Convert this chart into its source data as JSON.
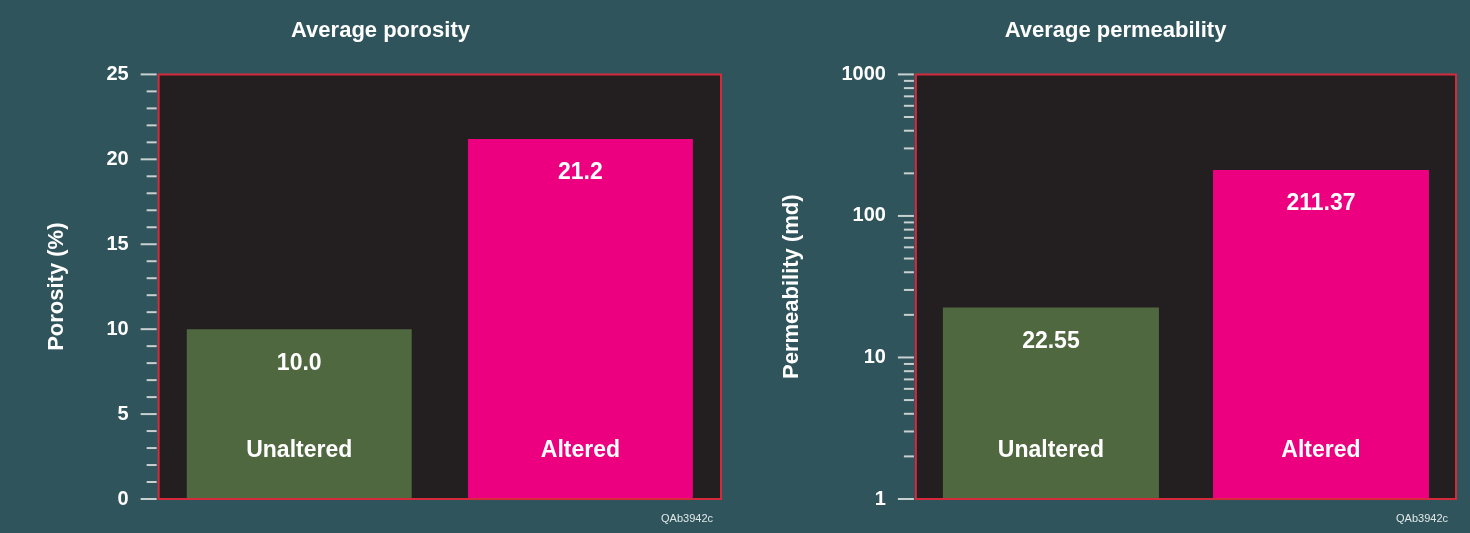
{
  "chart_data": [
    {
      "type": "bar",
      "title": "Average porosity",
      "ylabel": "Porosity (%)",
      "categories": [
        "Unaltered",
        "Altered"
      ],
      "values": [
        10,
        21.2
      ],
      "value_labels": [
        "10.0",
        "21.2"
      ],
      "colors": [
        "#506840",
        "#ec0080"
      ],
      "ylim": [
        0,
        25
      ],
      "yticks": [
        0,
        {
          "value": 1,
          "label": null
        },
        {
          "value": 2,
          "label": null
        },
        {
          "value": 3,
          "label": null
        },
        {
          "value": 4,
          "label": null
        },
        5,
        {
          "value": 6,
          "label": null
        },
        {
          "value": 7,
          "label": null
        },
        {
          "value": 8,
          "label": null
        },
        {
          "value": 9,
          "label": null
        },
        10,
        {
          "value": 11,
          "label": null
        },
        {
          "value": 12,
          "label": null
        },
        {
          "value": 13,
          "label": null
        },
        {
          "value": 14,
          "label": null
        },
        15,
        {
          "value": 16,
          "label": null
        },
        {
          "value": 17,
          "label": null
        },
        {
          "value": 18,
          "label": null
        },
        {
          "value": 19,
          "label": null
        },
        20,
        {
          "value": 21,
          "label": null
        },
        {
          "value": 22,
          "label": null
        },
        {
          "value": 23,
          "label": null
        },
        {
          "value": 24,
          "label": null
        },
        25
      ],
      "annotations": [
        "QAb3942c"
      ]
    },
    {
      "type": "bar",
      "title": "Average permeability",
      "ylabel": "Permeability (md)",
      "categories": [
        "Unaltered",
        "Altered"
      ],
      "values": [
        22.55,
        211.37
      ],
      "data_labels": true,
      "colors": [
        "#506840",
        "#ec0080"
      ],
      "log": true,
      "ylim": [
        1,
        1000
      ],
      "yticks": [
        1,
        {
          "value": 2,
          "label": null
        },
        {
          "value": 3,
          "label": null
        },
        {
          "value": 4,
          "label": null
        },
        {
          "value": 5,
          "label": null
        },
        {
          "value": 6,
          "label": null
        },
        {
          "value": 7,
          "label": null
        },
        {
          "value": 8,
          "label": null
        },
        {
          "value": 9,
          "label": null
        },
        10,
        {
          "value": 20,
          "label": null
        },
        {
          "value": 30,
          "label": null
        },
        {
          "value": 40,
          "label": null
        },
        {
          "value": 50,
          "label": null
        },
        {
          "value": 60,
          "label": null
        },
        {
          "value": 70,
          "label": null
        },
        {
          "value": 80,
          "label": null
        },
        {
          "value": 90,
          "label": null
        },
        100,
        {
          "value": 200,
          "label": null
        },
        {
          "value": 300,
          "label": null
        },
        {
          "value": 400,
          "label": null
        },
        {
          "value": 500,
          "label": null
        },
        {
          "value": 600,
          "label": null
        },
        {
          "value": 700,
          "label": null
        },
        {
          "value": 800,
          "label": null
        },
        {
          "value": 900,
          "label": null
        },
        1000
      ],
      "annotations": [
        "QAb3942c"
      ]
    }
  ]
}
